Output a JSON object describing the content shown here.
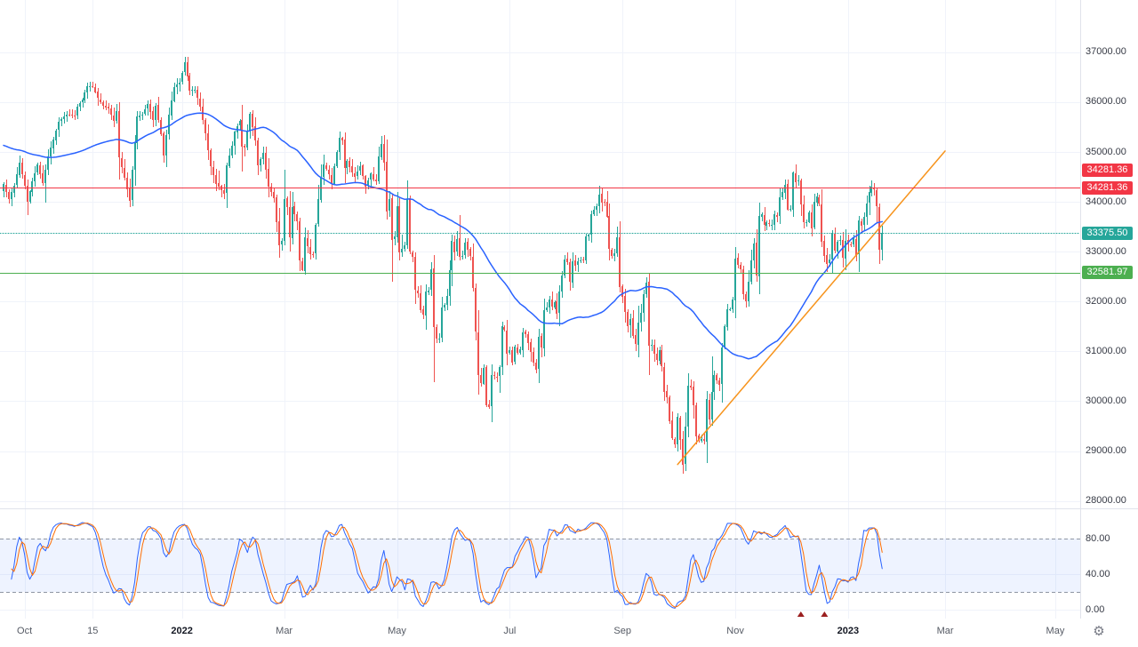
{
  "colors": {
    "background": "#ffffff",
    "grid": "#f0f3fa",
    "axis_border": "#e0e3eb",
    "axis_text": "#363a45",
    "year_text": "#131722",
    "up": "#26a69a",
    "down": "#ef5350"
  },
  "gear": {
    "glyph": "⚙"
  },
  "chart_data": {
    "type": "candlestick",
    "title": "",
    "legend_position": "none",
    "grid": true,
    "y_axis": {
      "min": 27850,
      "max": 38050,
      "ticks": [
        {
          "label": "37000.00",
          "value": 37000
        },
        {
          "label": "36000.00",
          "value": 36000
        },
        {
          "label": "35000.00",
          "value": 35000
        },
        {
          "label": "34000.00",
          "value": 34000
        },
        {
          "label": "33000.00",
          "value": 33000
        },
        {
          "label": "32000.00",
          "value": 32000
        },
        {
          "label": "31000.00",
          "value": 31000
        },
        {
          "label": "30000.00",
          "value": 30000
        },
        {
          "label": "29000.00",
          "value": 29000
        },
        {
          "label": "28000.00",
          "value": 28000
        }
      ]
    },
    "x_axis": {
      "slots": 412,
      "ticks": [
        {
          "label": "Oct",
          "i": 8,
          "bold": false
        },
        {
          "label": "15",
          "i": 34,
          "bold": false
        },
        {
          "label": "2022",
          "i": 68,
          "bold": true
        },
        {
          "label": "Mar",
          "i": 107,
          "bold": false
        },
        {
          "label": "May",
          "i": 150,
          "bold": false
        },
        {
          "label": "Jul",
          "i": 193,
          "bold": false
        },
        {
          "label": "Sep",
          "i": 236,
          "bold": false
        },
        {
          "label": "Nov",
          "i": 279,
          "bold": false
        },
        {
          "label": "2023",
          "i": 322,
          "bold": true
        },
        {
          "label": "Mar",
          "i": 359,
          "bold": false
        },
        {
          "label": "May",
          "i": 401,
          "bold": false
        }
      ]
    },
    "candles": {
      "count": 336,
      "close_anchors": [
        [
          0,
          34350
        ],
        [
          2,
          34050
        ],
        [
          4,
          34330
        ],
        [
          6,
          34780
        ],
        [
          8,
          34326
        ],
        [
          9,
          34003
        ],
        [
          11,
          34417
        ],
        [
          13,
          34746
        ],
        [
          15,
          34378
        ],
        [
          17,
          34913
        ],
        [
          19,
          35258
        ],
        [
          21,
          35609
        ],
        [
          24,
          35757
        ],
        [
          27,
          35730
        ],
        [
          28,
          35914
        ],
        [
          30,
          36053
        ],
        [
          32,
          36328
        ],
        [
          34,
          36320
        ],
        [
          36,
          36080
        ],
        [
          38,
          35921
        ],
        [
          40,
          35870
        ],
        [
          42,
          35619
        ],
        [
          43,
          35814
        ],
        [
          44,
          34899
        ],
        [
          46,
          34484
        ],
        [
          48,
          34022
        ],
        [
          49,
          34640
        ],
        [
          51,
          35719
        ],
        [
          53,
          35755
        ],
        [
          55,
          35971
        ],
        [
          57,
          35651
        ],
        [
          58,
          35927
        ],
        [
          60,
          35365
        ],
        [
          61,
          34932
        ],
        [
          63,
          35754
        ],
        [
          65,
          36302
        ],
        [
          67,
          36398
        ],
        [
          68,
          36585
        ],
        [
          69,
          36800
        ],
        [
          71,
          36236
        ],
        [
          73,
          36252
        ],
        [
          75,
          35911
        ],
        [
          77,
          35369
        ],
        [
          79,
          34715
        ],
        [
          81,
          34364
        ],
        [
          82,
          34297
        ],
        [
          84,
          34168
        ],
        [
          85,
          34725
        ],
        [
          87,
          35132
        ],
        [
          88,
          35405
        ],
        [
          90,
          35629
        ],
        [
          91,
          35111
        ],
        [
          92,
          35089
        ],
        [
          94,
          35768
        ],
        [
          96,
          35241
        ],
        [
          97,
          34738
        ],
        [
          99,
          34988
        ],
        [
          101,
          34312
        ],
        [
          103,
          34079
        ],
        [
          104,
          33597
        ],
        [
          105,
          33132
        ],
        [
          106,
          33224
        ],
        [
          107,
          34059
        ],
        [
          108,
          33893
        ],
        [
          109,
          33295
        ],
        [
          110,
          33891
        ],
        [
          112,
          33615
        ],
        [
          113,
          32817
        ],
        [
          114,
          32632
        ],
        [
          115,
          33286
        ],
        [
          117,
          32944
        ],
        [
          118,
          32945
        ],
        [
          119,
          33544
        ],
        [
          120,
          34063
        ],
        [
          121,
          34480
        ],
        [
          122,
          34755
        ],
        [
          124,
          34553
        ],
        [
          125,
          34358
        ],
        [
          126,
          34708
        ],
        [
          128,
          35294
        ],
        [
          129,
          35229
        ],
        [
          130,
          34678
        ],
        [
          131,
          34818
        ],
        [
          133,
          34583
        ],
        [
          134,
          34497
        ],
        [
          136,
          34721
        ],
        [
          138,
          34308
        ],
        [
          140,
          34564
        ],
        [
          141,
          34451
        ],
        [
          142,
          34411
        ],
        [
          143,
          34911
        ],
        [
          144,
          35160
        ],
        [
          145,
          34793
        ],
        [
          146,
          33811
        ],
        [
          147,
          34049
        ],
        [
          148,
          33240
        ],
        [
          149,
          33301
        ],
        [
          150,
          33916
        ],
        [
          151,
          32977
        ],
        [
          152,
          33061
        ],
        [
          153,
          33128
        ],
        [
          154,
          34061
        ],
        [
          155,
          32997
        ],
        [
          156,
          32899
        ],
        [
          157,
          32245
        ],
        [
          158,
          32160
        ],
        [
          159,
          31834
        ],
        [
          160,
          31730
        ],
        [
          161,
          32196
        ],
        [
          162,
          32223
        ],
        [
          163,
          32654
        ],
        [
          164,
          31490
        ],
        [
          165,
          31253
        ],
        [
          166,
          31261
        ],
        [
          167,
          31880
        ],
        [
          168,
          31928
        ],
        [
          169,
          32120
        ],
        [
          170,
          32637
        ],
        [
          171,
          33213
        ],
        [
          172,
          32990
        ],
        [
          173,
          33248
        ],
        [
          174,
          32900
        ],
        [
          175,
          32916
        ],
        [
          176,
          33180
        ],
        [
          178,
          32911
        ],
        [
          179,
          32273
        ],
        [
          180,
          31393
        ],
        [
          181,
          30517
        ],
        [
          182,
          30365
        ],
        [
          183,
          30669
        ],
        [
          184,
          29927
        ],
        [
          185,
          29889
        ],
        [
          186,
          30530
        ],
        [
          188,
          30483
        ],
        [
          189,
          30678
        ],
        [
          190,
          31501
        ],
        [
          191,
          31438
        ],
        [
          192,
          30947
        ],
        [
          193,
          31029
        ],
        [
          194,
          30775
        ],
        [
          195,
          31097
        ],
        [
          196,
          30967
        ],
        [
          197,
          31038
        ],
        [
          198,
          31385
        ],
        [
          199,
          31338
        ],
        [
          200,
          31174
        ],
        [
          201,
          30981
        ],
        [
          202,
          30773
        ],
        [
          203,
          30630
        ],
        [
          204,
          31288
        ],
        [
          205,
          31073
        ],
        [
          206,
          31827
        ],
        [
          207,
          31875
        ],
        [
          208,
          32036
        ],
        [
          209,
          31899
        ],
        [
          210,
          31990
        ],
        [
          211,
          31761
        ],
        [
          212,
          32197
        ],
        [
          213,
          32529
        ],
        [
          214,
          32845
        ],
        [
          215,
          32798
        ],
        [
          216,
          32396
        ],
        [
          217,
          32812
        ],
        [
          218,
          32727
        ],
        [
          219,
          32803
        ],
        [
          221,
          32832
        ],
        [
          222,
          33309
        ],
        [
          223,
          33336
        ],
        [
          224,
          33761
        ],
        [
          226,
          33912
        ],
        [
          227,
          34152
        ],
        [
          228,
          33980
        ],
        [
          229,
          33999
        ],
        [
          230,
          33706
        ],
        [
          231,
          33063
        ],
        [
          232,
          32909
        ],
        [
          233,
          32969
        ],
        [
          234,
          33291
        ],
        [
          235,
          32283
        ],
        [
          236,
          32098
        ],
        [
          237,
          31790
        ],
        [
          238,
          31510
        ],
        [
          239,
          31656
        ],
        [
          240,
          31318
        ],
        [
          241,
          31145
        ],
        [
          242,
          31581
        ],
        [
          243,
          31774
        ],
        [
          244,
          32151
        ],
        [
          245,
          32381
        ],
        [
          246,
          31105
        ],
        [
          247,
          31135
        ],
        [
          248,
          30961
        ],
        [
          249,
          30822
        ],
        [
          250,
          31020
        ],
        [
          251,
          30706
        ],
        [
          252,
          30184
        ],
        [
          253,
          30077
        ],
        [
          254,
          29590
        ],
        [
          255,
          29261
        ],
        [
          256,
          29135
        ],
        [
          257,
          29684
        ],
        [
          258,
          29226
        ],
        [
          259,
          28726
        ],
        [
          260,
          29491
        ],
        [
          261,
          30316
        ],
        [
          262,
          30274
        ],
        [
          263,
          29927
        ],
        [
          264,
          29297
        ],
        [
          265,
          29203
        ],
        [
          266,
          29239
        ],
        [
          267,
          29211
        ],
        [
          268,
          30039
        ],
        [
          269,
          29635
        ],
        [
          270,
          30186
        ],
        [
          271,
          30524
        ],
        [
          272,
          30424
        ],
        [
          273,
          30334
        ],
        [
          274,
          31083
        ],
        [
          275,
          31500
        ],
        [
          276,
          31837
        ],
        [
          277,
          31840
        ],
        [
          278,
          32033
        ],
        [
          279,
          32862
        ],
        [
          280,
          32733
        ],
        [
          281,
          32653
        ],
        [
          282,
          32148
        ],
        [
          283,
          32001
        ],
        [
          284,
          32403
        ],
        [
          285,
          32827
        ],
        [
          286,
          33161
        ],
        [
          287,
          32514
        ],
        [
          288,
          33715
        ],
        [
          289,
          33748
        ],
        [
          290,
          33537
        ],
        [
          291,
          33593
        ],
        [
          292,
          33554
        ],
        [
          293,
          33546
        ],
        [
          294,
          33746
        ],
        [
          295,
          33700
        ],
        [
          296,
          34098
        ],
        [
          297,
          34194
        ],
        [
          298,
          34347
        ],
        [
          299,
          33849
        ],
        [
          300,
          33853
        ],
        [
          301,
          34590
        ],
        [
          302,
          34395
        ],
        [
          303,
          34429
        ],
        [
          304,
          33947
        ],
        [
          305,
          33596
        ],
        [
          306,
          33598
        ],
        [
          307,
          33781
        ],
        [
          308,
          33476
        ],
        [
          309,
          34005
        ],
        [
          310,
          34108
        ],
        [
          311,
          33966
        ],
        [
          312,
          33202
        ],
        [
          313,
          32920
        ],
        [
          314,
          32758
        ],
        [
          315,
          32850
        ],
        [
          316,
          33376
        ],
        [
          317,
          33027
        ],
        [
          318,
          33204
        ],
        [
          319,
          33241
        ],
        [
          320,
          32875
        ],
        [
          321,
          33221
        ],
        [
          322,
          33147
        ],
        [
          323,
          33136
        ],
        [
          324,
          33270
        ],
        [
          325,
          32930
        ],
        [
          326,
          33631
        ],
        [
          327,
          33517
        ],
        [
          328,
          33704
        ],
        [
          329,
          33973
        ],
        [
          330,
          34190
        ],
        [
          331,
          34303
        ],
        [
          332,
          34250
        ],
        [
          333,
          33911
        ],
        [
          334,
          33045
        ],
        [
          335,
          33375.5
        ]
      ]
    },
    "sma": {
      "period": 50,
      "warmup_seed": 35150,
      "color": "#2962ff"
    },
    "trendline": {
      "i1": 257,
      "price1": 28730,
      "i2": 359,
      "price2": 35020,
      "color": "#f7941d"
    },
    "horizontal_lines": [
      {
        "price": 34281.36,
        "color": "#f23645",
        "style": "solid",
        "badges": [
          {
            "text": "34281.36",
            "at_price": 34630,
            "bg": "#f23645"
          },
          {
            "text": "34281.36",
            "at_price": 34281.36,
            "bg": "#f23645"
          }
        ]
      },
      {
        "price": 33375.5,
        "color": "#26a69a",
        "style": "dotted",
        "badges": [
          {
            "text": "33375.50",
            "at_price": 33375.5,
            "bg": "#26a69a"
          }
        ]
      },
      {
        "price": 32581.97,
        "color": "#4caf50",
        "style": "solid",
        "badges": [
          {
            "text": "32581.97",
            "at_price": 32581.97,
            "bg": "#4caf50"
          }
        ]
      }
    ],
    "stochastic": {
      "k_period": 14,
      "k_smoothing": 3,
      "d_period": 3,
      "k_color": "#2962ff",
      "d_color": "#ff6d00",
      "upper_band": 80,
      "lower_band": 20,
      "band_fill": "rgba(41,98,255,0.08)",
      "band_line_color": "#8f96a3",
      "y_ticks": [
        {
          "label": "80.00",
          "value": 80
        },
        {
          "label": "40.00",
          "value": 40
        },
        {
          "label": "0.00",
          "value": 0
        }
      ],
      "markers": [
        {
          "i": 304,
          "shape": "triangle-up",
          "color": "#9b1f1f"
        },
        {
          "i": 313,
          "shape": "triangle-up",
          "color": "#9b1f1f"
        }
      ]
    }
  }
}
